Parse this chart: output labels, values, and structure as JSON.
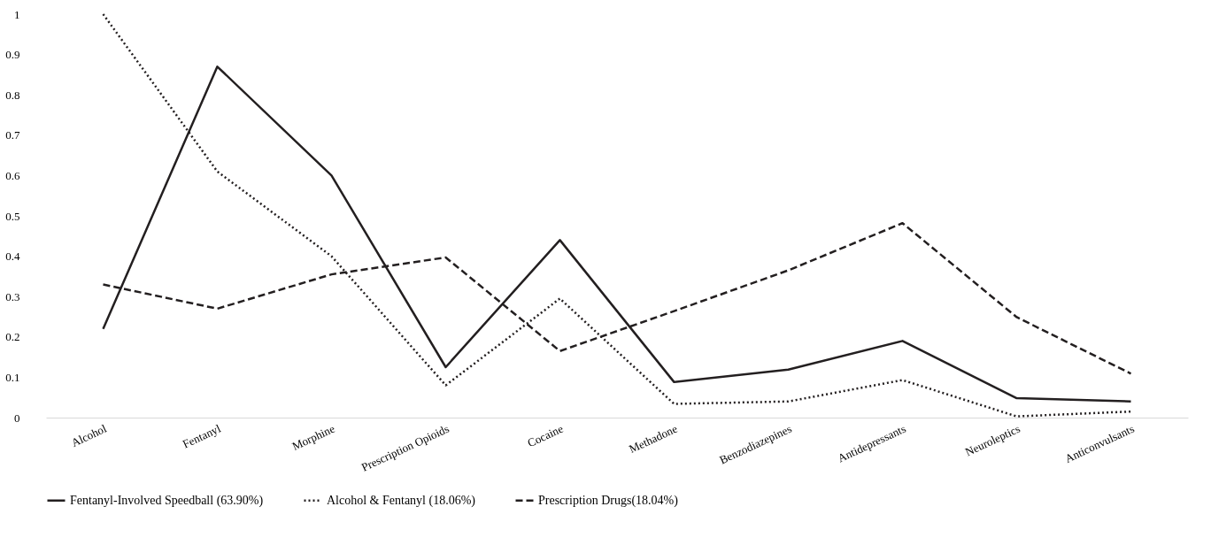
{
  "chart_data": {
    "type": "line",
    "categories": [
      "Alcohol",
      "Fentanyl",
      "Morphine",
      "Prescription Opioids",
      "Cocaine",
      "Methadone",
      "Benzodiazepines",
      "Antidepressants",
      "Neuroleptics",
      "Anticonvulsants"
    ],
    "series": [
      {
        "name": "Fentanyl-Involved Speedball (63.90%)",
        "color": "#231f20",
        "line_style": "solid",
        "values": [
          0.22,
          0.87,
          0.6,
          0.125,
          0.44,
          0.088,
          0.119,
          0.19,
          0.048,
          0.04
        ]
      },
      {
        "name": "Alcohol & Fentanyl (18.06%)",
        "color": "#231f20",
        "line_style": "dotted",
        "values": [
          1.0,
          0.61,
          0.4,
          0.08,
          0.295,
          0.034,
          0.04,
          0.093,
          0.003,
          0.015
        ]
      },
      {
        "name": "Prescription Drugs(18.04%)",
        "color": "#231f20",
        "line_style": "dashed",
        "values": [
          0.33,
          0.27,
          0.355,
          0.397,
          0.165,
          0.264,
          0.365,
          0.482,
          0.249,
          0.109
        ]
      }
    ],
    "ylim": [
      0,
      1
    ],
    "yticks": [
      0,
      0.1,
      0.2,
      0.3,
      0.4,
      0.5,
      0.6,
      0.7,
      0.8,
      0.9,
      1
    ],
    "grid": false,
    "legend": "bottom",
    "marker": "none"
  }
}
